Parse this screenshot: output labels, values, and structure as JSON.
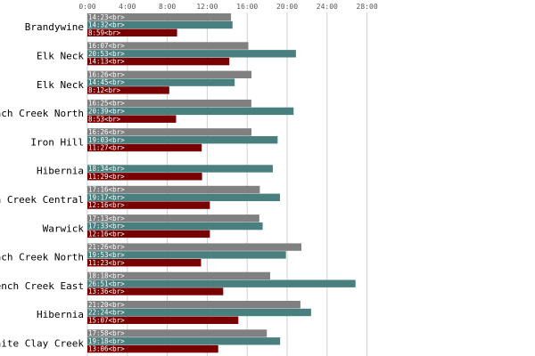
{
  "chart_data": {
    "type": "bar",
    "orientation": "horizontal",
    "title": "",
    "xlabel": "",
    "ylabel": "",
    "x_unit": "hours:minutes",
    "xlim": [
      0,
      28
    ],
    "x_ticks": [
      "0:00",
      "4:00",
      "8:00",
      "12:00",
      "16:00",
      "20:00",
      "24:00",
      "28:00"
    ],
    "x_tick_values": [
      0,
      4,
      8,
      12,
      16,
      20,
      24,
      28
    ],
    "grid": true,
    "legend": "none",
    "colors": [
      "#808080",
      "#4a7f7f",
      "#780000"
    ],
    "categories": [
      "Brandywine",
      "Elk Neck",
      "Elk Neck",
      "French Creek North",
      "Iron Hill",
      "Hibernia",
      "French Creek Central",
      "Warwick",
      "French Creek North",
      "French Creek East",
      "Hibernia",
      "White Clay Creek"
    ],
    "series": [
      {
        "values": [
          14.383,
          16.117,
          16.433,
          16.417,
          16.433,
          null,
          17.267,
          17.217,
          21.433,
          18.3,
          21.333,
          17.967
        ],
        "labels": [
          "14:23<br>",
          "16:07<br>",
          "16:26<br>",
          "16:25<br>",
          "16:26<br>",
          "",
          "17:16<br>",
          "17:13<br>",
          "21:26<br>",
          "18:18<br>",
          "21:20<br>",
          "17:58<br>"
        ]
      },
      {
        "values": [
          14.533,
          20.883,
          14.75,
          20.65,
          19.05,
          18.567,
          19.283,
          17.55,
          19.883,
          26.85,
          22.4,
          19.3
        ],
        "labels": [
          "14:32<br>",
          "20:53<br>",
          "14:45<br>",
          "20:39<br>",
          "19:03<br>",
          "18:34<br>",
          "19:17<br>",
          "17:33<br>",
          "19:53<br>",
          "26:51<br>",
          "22:24<br>",
          "19:18<br>"
        ]
      },
      {
        "values": [
          8.983,
          14.217,
          8.2,
          8.883,
          11.45,
          11.483,
          12.267,
          12.267,
          11.383,
          13.6,
          15.117,
          13.1
        ],
        "labels": [
          "8:59<br>",
          "14:13<br>",
          "8:12<br>",
          "8:53<br>",
          "11:27<br>",
          "11:29<br>",
          "12:16<br>",
          "12:16<br>",
          "11:23<br>",
          "13:36<br>",
          "15:07<br>",
          "13:06<br>"
        ]
      }
    ]
  }
}
